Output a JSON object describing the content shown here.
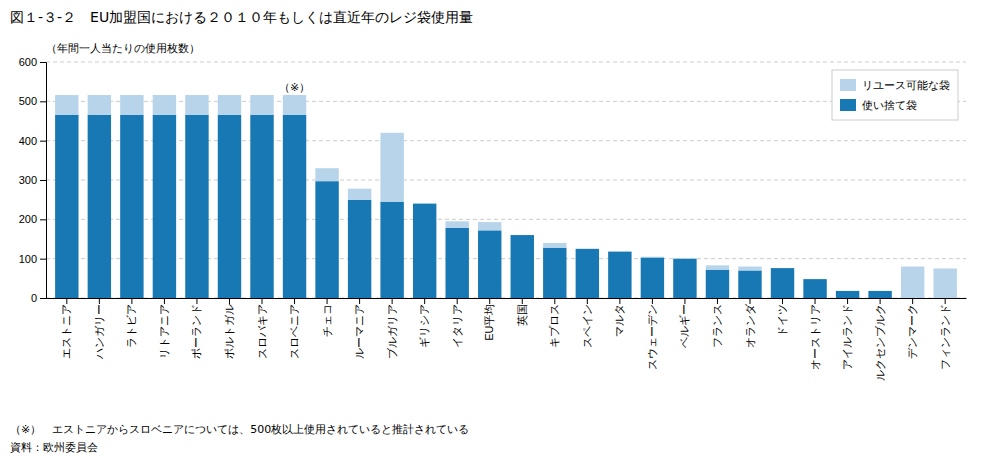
{
  "chart_data": {
    "type": "bar",
    "stacked": true,
    "title": "図１-３-２　EU加盟国における２０１０年もしくは直近年のレジ袋使用量",
    "ylabel": "（年間一人当たりの使用枚数）",
    "categories": [
      "エストニア",
      "ハンガリー",
      "ラトビア",
      "リトアニア",
      "ポーランド",
      "ポルトガル",
      "スロバキア",
      "スロベニア",
      "チェコ",
      "ルーマニア",
      "ブルガリア",
      "ギリシア",
      "イタリア",
      "EU平均",
      "英国",
      "キプロス",
      "スペイン",
      "マルタ",
      "スウェーデン",
      "ベルギー",
      "フランス",
      "オランダ",
      "ドイツ",
      "オーストリア",
      "アイルランド",
      "ルクセンブルク",
      "デンマーク",
      "フィンランド"
    ],
    "series": [
      {
        "name": "使い捨て袋",
        "color": "#1878b4",
        "values": [
          466,
          466,
          466,
          466,
          466,
          466,
          466,
          466,
          297,
          250,
          245,
          240,
          178,
          172,
          160,
          128,
          125,
          118,
          103,
          100,
          72,
          70,
          76,
          48,
          18,
          18,
          0,
          0
        ]
      },
      {
        "name": "リユース可能な袋",
        "color": "#b8d4ea",
        "values": [
          50,
          50,
          50,
          50,
          50,
          50,
          50,
          50,
          33,
          28,
          175,
          0,
          17,
          21,
          0,
          12,
          0,
          0,
          2,
          2,
          11,
          10,
          0,
          0,
          0,
          0,
          80,
          75
        ]
      }
    ],
    "ylim": [
      0,
      600
    ],
    "yticks": [
      0,
      100,
      200,
      300,
      400,
      500,
      600
    ],
    "grid": true,
    "legend": "upper right",
    "annotations": [
      {
        "text": "（※）",
        "category": "スロベニア"
      }
    ],
    "footnotes": [
      "（※）　エストニアからスロベニアについては、500枚以上使用されていると推計されている",
      "資料：欧州委員会"
    ]
  }
}
